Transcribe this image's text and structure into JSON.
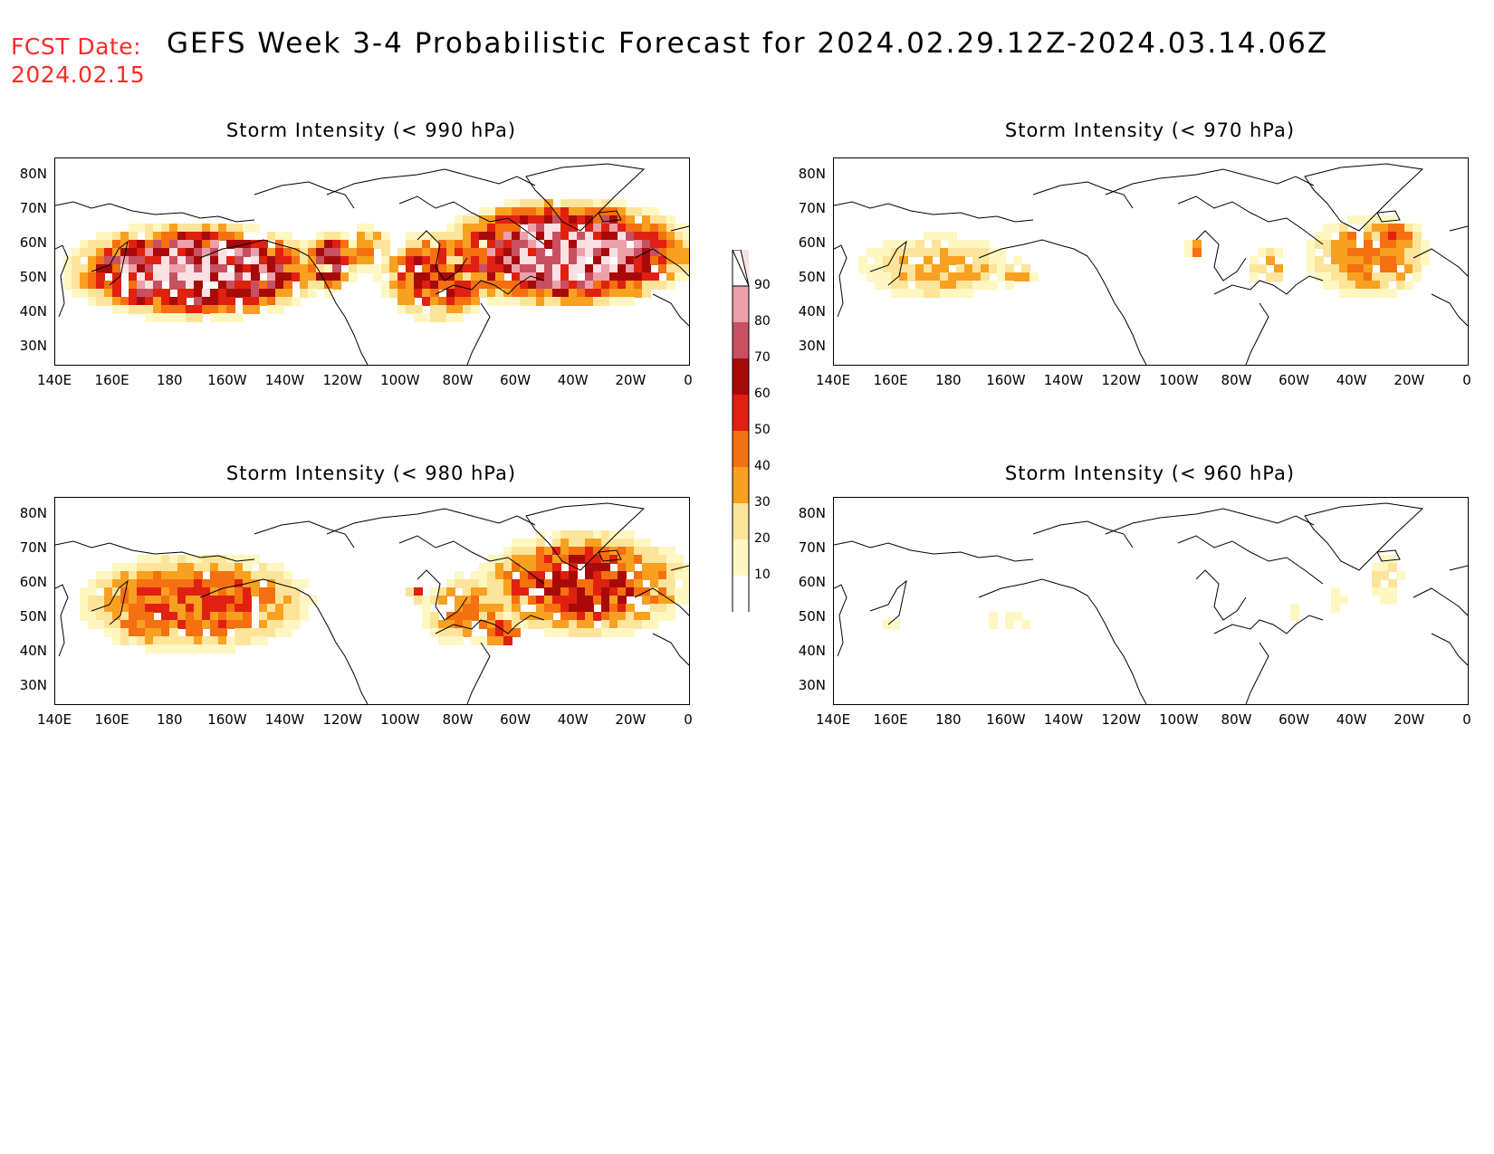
{
  "header": {
    "fcst_label": "FCST Date:",
    "fcst_date": "2024.02.15",
    "title": "GEFS Week 3-4 Probabilistic Forecast for 2024.02.29.12Z-2024.03.14.06Z"
  },
  "axes": {
    "lat_labels": [
      "80N",
      "70N",
      "60N",
      "50N",
      "40N",
      "30N"
    ],
    "lon_labels": [
      "140E",
      "160E",
      "180",
      "160W",
      "140W",
      "120W",
      "100W",
      "80W",
      "60W",
      "40W",
      "20W",
      "0"
    ]
  },
  "colorbar": {
    "levels": [
      "10",
      "20",
      "30",
      "40",
      "50",
      "60",
      "70",
      "80",
      "90"
    ],
    "colors": [
      "#fff7c2",
      "#fde49b",
      "#f8a020",
      "#f47010",
      "#e02010",
      "#a80a0a",
      "#c85060",
      "#eba0aa",
      "#fbe0e4"
    ]
  },
  "panels": [
    {
      "title": "Storm Intensity (< 990 hPa)",
      "position": "top-left"
    },
    {
      "title": "Storm Intensity (< 970 hPa)",
      "position": "top-right"
    },
    {
      "title": "Storm Intensity (< 980 hPa)",
      "position": "bottom-left"
    },
    {
      "title": "Storm Intensity (< 960 hPa)",
      "position": "bottom-right"
    }
  ]
}
